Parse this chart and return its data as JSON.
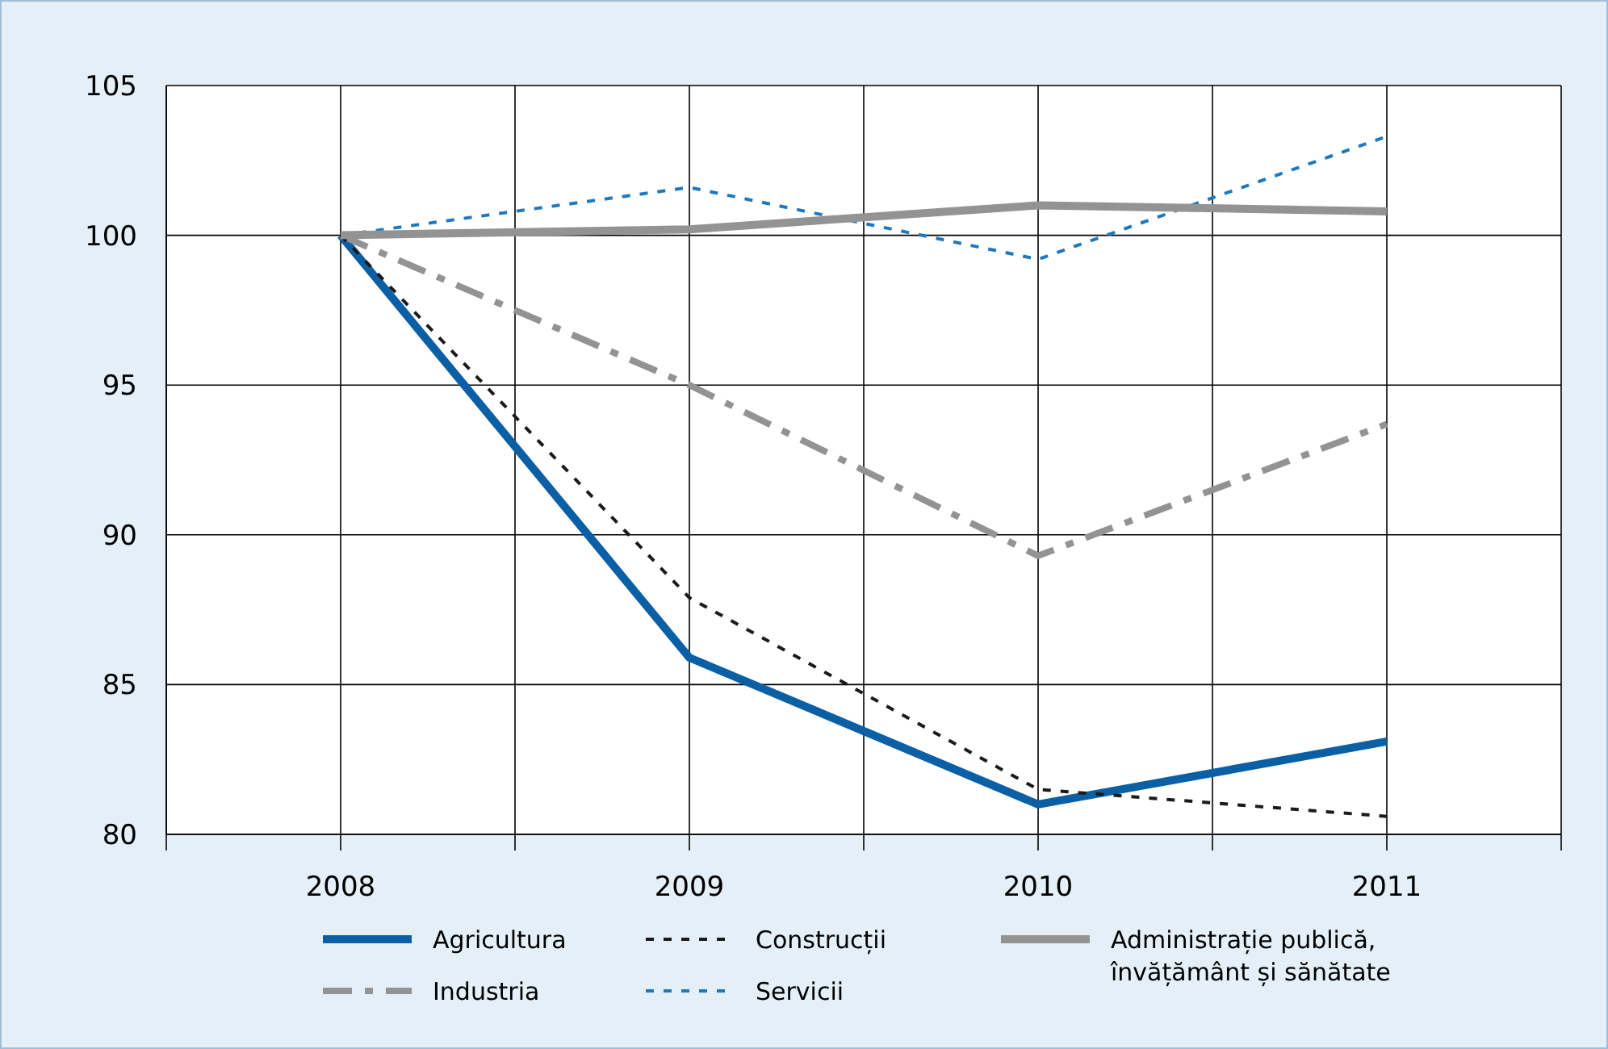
{
  "chart_data": {
    "type": "line",
    "x": [
      2008,
      2009,
      2010,
      2011
    ],
    "xlim": [
      2007.5,
      2011.5
    ],
    "xticks": [
      {
        "value": 2007.5,
        "label": null
      },
      2008,
      {
        "value": 2008.5,
        "label": null
      },
      2009,
      {
        "value": 2009.5,
        "label": null
      },
      2010,
      {
        "value": 2010.5,
        "label": null
      },
      2011,
      {
        "value": 2011.5,
        "label": null
      }
    ],
    "ylim": [
      80,
      105
    ],
    "yticks": [
      80,
      85,
      90,
      95,
      100,
      105
    ],
    "grid": true,
    "legend": "bottom",
    "marker": "none",
    "series": [
      {
        "name": "Agricultura",
        "color": "#0b5fa5",
        "line_style": "solid",
        "values": [
          100,
          85.9,
          81.0,
          83.1
        ]
      },
      {
        "name": "Industria",
        "color": "#939393",
        "line_style": "dashdot",
        "values": [
          100,
          95.0,
          89.3,
          93.7
        ]
      },
      {
        "name": "Construcții",
        "color": "#1a1a1a",
        "line_style": "dashed",
        "values": [
          100,
          87.9,
          81.5,
          80.6
        ]
      },
      {
        "name": "Servicii",
        "color": "#1e78be",
        "line_style": "dashed",
        "values": [
          100,
          101.6,
          99.2,
          103.3
        ]
      },
      {
        "name": "Administrație publică, învățământ și sănătate",
        "color": "#939393",
        "line_style": "solid",
        "values": [
          100,
          100.2,
          101.0,
          100.8
        ]
      }
    ]
  }
}
